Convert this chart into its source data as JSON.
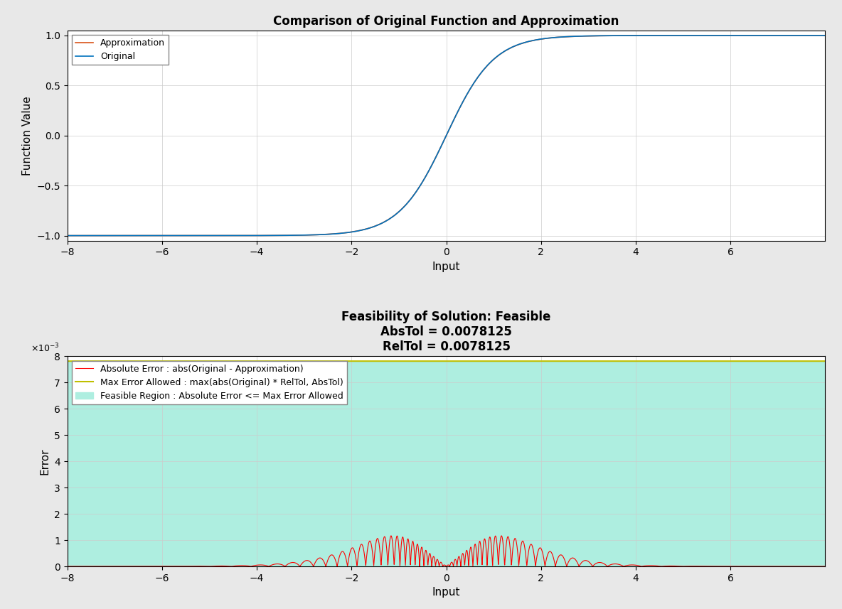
{
  "title1": "Comparison of Original Function and Approximation",
  "xlabel1": "Input",
  "ylabel1": "Function Value",
  "title2": "Feasibility of Solution: Feasible\nAbsTol = 0.0078125\nRelTol = 0.0078125",
  "xlabel2": "Input",
  "ylabel2": "Error",
  "abs_tol": 0.0078125,
  "rel_tol": 0.0078125,
  "x_min": -8,
  "x_max": 8,
  "n_points": 4000,
  "original_color": "#0072BD",
  "approx_color": "#D95319",
  "error_color": "#FF0000",
  "max_error_color": "#BFBF00",
  "feasible_color": "#AEEEE0",
  "legend1_labels": [
    "Approximation",
    "Original"
  ],
  "legend2_labels": [
    "Absolute Error : abs(Original - Approximation)",
    "Max Error Allowed : max(abs(Original) * RelTol, AbsTol)",
    "Feasible Region : Absolute Error <= Max Error Allowed"
  ],
  "background_color": "#E8E8E8",
  "plot_bg": "#FFFFFF",
  "n_breakpoints": 64
}
